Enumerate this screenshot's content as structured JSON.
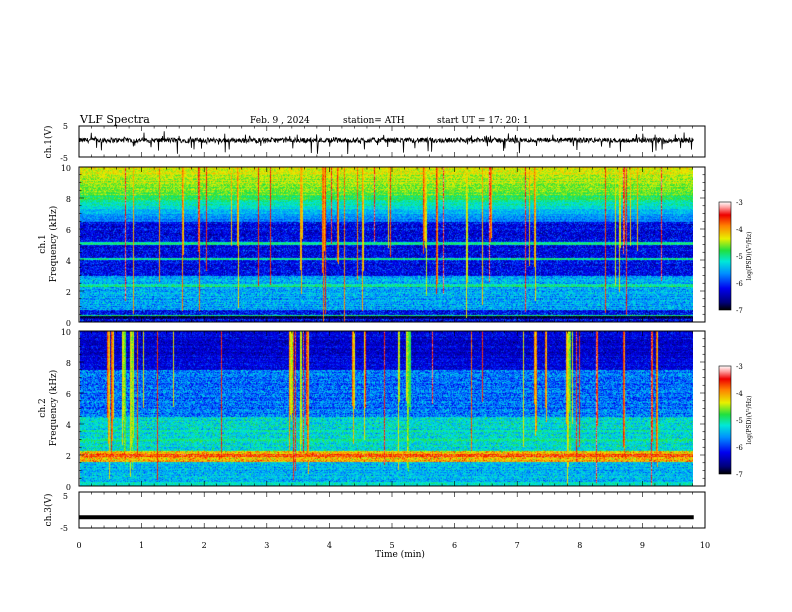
{
  "header": {
    "title": "VLF  Spectra",
    "date": "Feb. 9  , 2024",
    "station": "station= ATH",
    "start": "start  UT  =    17: 20: 1"
  },
  "chart_data": [
    {
      "type": "line",
      "ylabel": "ch.1(V)",
      "ylim": [
        -5,
        5
      ],
      "y_ticks": [
        "5",
        "-5"
      ],
      "xlim": [
        0,
        10
      ],
      "series": [
        {
          "values": "noisy waveform around ~0 V with occasional negative spikes"
        }
      ],
      "color": "#000000"
    },
    {
      "type": "heatmap",
      "ylabel": "ch.1\nFrequency  (kHz)",
      "ylim": [
        0,
        10
      ],
      "y_ticks": [
        "0",
        "2",
        "4",
        "6",
        "8",
        "10"
      ],
      "xlim": [
        0,
        10
      ],
      "data_extent_x": [
        0,
        9.82
      ],
      "colorbar": {
        "label": "log(PSD)(V²/Hz)",
        "range": [
          -7,
          -3
        ],
        "ticks": [
          "-3",
          "-4",
          "-5",
          "-6",
          "-7"
        ]
      }
    },
    {
      "type": "heatmap",
      "ylabel": "ch.2\nFrequency  (kHz)",
      "ylim": [
        0,
        10
      ],
      "y_ticks": [
        "0",
        "2",
        "4",
        "6",
        "8",
        "10"
      ],
      "xlim": [
        0,
        10
      ],
      "data_extent_x": [
        0,
        9.82
      ],
      "colorbar": {
        "label": "log(PSD)(V²/Hz)",
        "range": [
          -7,
          -3
        ],
        "ticks": [
          "-3",
          "-4",
          "-5",
          "-6",
          "-7"
        ]
      }
    },
    {
      "type": "line",
      "ylabel": "ch.3(V)",
      "ylim": [
        -5,
        5
      ],
      "y_ticks": [
        "5",
        "-5"
      ],
      "xlim": [
        0,
        10
      ],
      "xlabel": "Time  (min)",
      "x_ticks": [
        "0",
        "1",
        "2",
        "3",
        "4",
        "5",
        "6",
        "7",
        "8",
        "9",
        "10"
      ],
      "series": [
        {
          "values": "flat thick trace at approximately -2 V"
        }
      ],
      "level": -2
    }
  ]
}
